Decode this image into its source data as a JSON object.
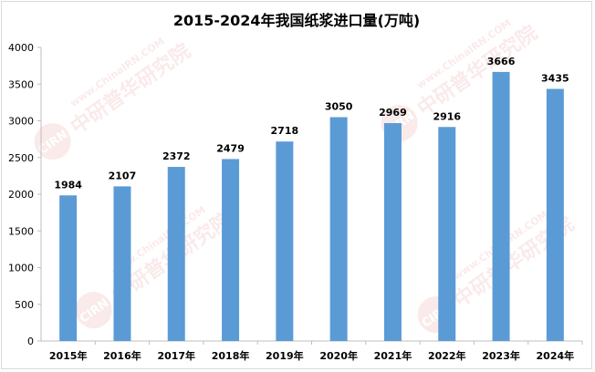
{
  "chart_data": {
    "type": "bar",
    "title": "2015-2024年我国纸浆进口量(万吨)",
    "categories": [
      "2015年",
      "2016年",
      "2017年",
      "2018年",
      "2019年",
      "2020年",
      "2021年",
      "2022年",
      "2023年",
      "2024年"
    ],
    "values": [
      1984,
      2107,
      2372,
      2479,
      2718,
      3050,
      2969,
      2916,
      3666,
      3435
    ],
    "ylim": [
      0,
      4000
    ],
    "yticks": [
      0,
      500,
      1000,
      1500,
      2000,
      2500,
      3000,
      3500,
      4000
    ],
    "grid": false,
    "legend": "none",
    "xlabel": "",
    "ylabel": "",
    "bar_color": "#5b9bd5",
    "axis_color": "#bfbfbf"
  },
  "watermark": {
    "logo_text": "CIRN",
    "brand_cn": "中研普华研究院",
    "brand_url": "www.ChinaIRN.COM",
    "logo_color": "#e06666"
  }
}
